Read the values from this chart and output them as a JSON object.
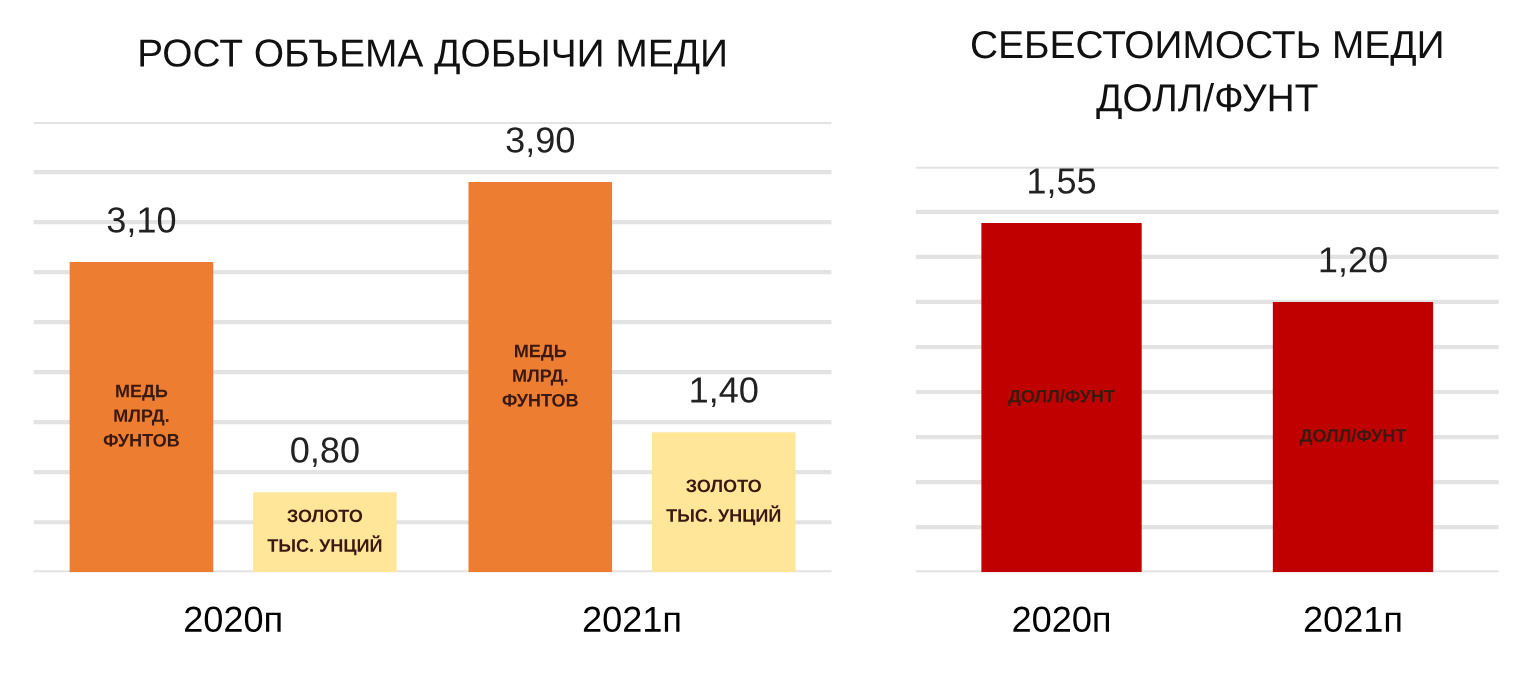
{
  "chart_data": [
    {
      "type": "bar",
      "title": "РОСТ ОБЪЕМА ДОБЫЧИ МЕДИ",
      "categories": [
        "2020п",
        "2021п"
      ],
      "series": [
        {
          "name": "МЕДЬ\nМЛРД.\nФУНТОВ",
          "color": "#ed7d31",
          "values": [
            3.1,
            3.9
          ],
          "value_labels": [
            "3,10",
            "3,90"
          ]
        },
        {
          "name": "ЗОЛОТО\nТЫС. УНЦИЙ",
          "color": "#ffe699",
          "values": [
            0.8,
            1.4
          ],
          "value_labels": [
            "0,80",
            "1,40"
          ]
        }
      ],
      "ylim": [
        0,
        4.5
      ],
      "yticks": [
        {
          "value": 0,
          "label": null
        },
        {
          "value": 0.5,
          "label": null
        },
        {
          "value": 1,
          "label": null
        },
        {
          "value": 1.5,
          "label": null
        },
        {
          "value": 2,
          "label": null
        },
        {
          "value": 2.5,
          "label": null
        },
        {
          "value": 3,
          "label": null
        },
        {
          "value": 3.5,
          "label": null
        },
        {
          "value": 4,
          "label": null
        },
        {
          "value": 4.5,
          "label": null
        }
      ],
      "grid": "y",
      "tick_labels": "x"
    },
    {
      "type": "bar",
      "title": "СЕБЕСТОИМОСТЬ МЕДИ\nДОЛЛ/ФУНТ",
      "categories": [
        "2020п",
        "2021п"
      ],
      "series": [
        {
          "name": "ДОЛЛ/ФУНТ",
          "color": "#c00000",
          "values": [
            1.55,
            1.2
          ],
          "value_labels": [
            "1,55",
            "1,20"
          ]
        }
      ],
      "ylim": [
        0,
        1.8
      ],
      "yticks": [
        {
          "value": 0,
          "label": null
        },
        {
          "value": 0.2,
          "label": null
        },
        {
          "value": 0.4,
          "label": null
        },
        {
          "value": 0.6,
          "label": null
        },
        {
          "value": 0.8,
          "label": null
        },
        {
          "value": 1,
          "label": null
        },
        {
          "value": 1.2,
          "label": null
        },
        {
          "value": 1.4,
          "label": null
        },
        {
          "value": 1.6,
          "label": null
        },
        {
          "value": 1.8,
          "label": null
        }
      ],
      "grid": "y",
      "tick_labels": "x"
    }
  ]
}
